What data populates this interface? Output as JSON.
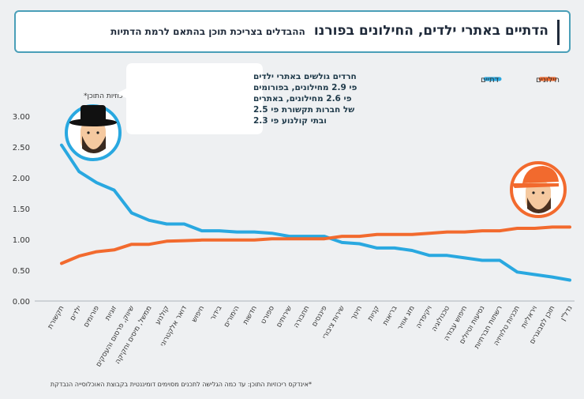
{
  "header": {
    "title": "הדתיים באתרי ילדים, החילונים בפורנו",
    "subtitle": "ההבדלים בצריכת תוכן בהתאם לרמת הדתיות"
  },
  "footnote": "*אינדקס ריכוזיות התוכן: עד כמה הגלישה לתכנים מסוימים דומיננטית בקבוצת האוכלוסייה הנבדקת",
  "callout": {
    "lines": [
      "חרדים גולשים באתרי ילדים",
      "פי 2.9 מחילונים, בפורומים",
      "פי 2.6 מחילונים, באתרים",
      "של חברות תקשורת פי 2.5",
      "ובתי קולנוע פי 2.3"
    ]
  },
  "icons": {
    "religious": "haredi-man-icon",
    "secular": "man-with-orange-cap-icon"
  },
  "colors": {
    "religious": "#29a8e0",
    "secular": "#f26a2e",
    "axis_text": "#333333",
    "grid": "#d0d4d8",
    "callout_text": "#1f3a4a"
  },
  "chart_data": {
    "type": "line",
    "ylabel": "אינדקס ריכוזיות התוכן*",
    "ylim": [
      0,
      3
    ],
    "yticks": [
      "0.00",
      "0.50",
      "1.00",
      "1.50",
      "2.00",
      "2.50",
      "3.00"
    ],
    "grid": false,
    "legend_position": "top-right",
    "categories": [
      "תקשורת",
      "ילדים",
      "פורומים",
      "זוגיות",
      "שיווק, פרסום והעסקים",
      "ממשל, מיסים וחקיקה",
      "קולנוע",
      "דואר אלקטרוני",
      "חיפוש",
      "בידור",
      "הימורים",
      "חדשות",
      "ספורט",
      "שירותים",
      "תחבורה",
      "פיננסים",
      "שירות ציבורי",
      "חינוך",
      "קניות",
      "בריאות",
      "מזג אוויר",
      "ויקיפדיה",
      "טכנולוגיה",
      "חיפוש עבודה",
      "נסיעות וטיולים",
      "רשתות חברתיות",
      "תכניות טלוויזיה",
      "ויראליות",
      "תוכן למבוגרים",
      "נדל\"ן"
    ],
    "series": [
      {
        "name": "דתיים",
        "color": "#29a8e0",
        "values": [
          2.53,
          2.1,
          1.92,
          1.8,
          1.43,
          1.31,
          1.25,
          1.25,
          1.14,
          1.14,
          1.12,
          1.12,
          1.1,
          1.05,
          1.05,
          1.05,
          0.95,
          0.93,
          0.86,
          0.86,
          0.82,
          0.74,
          0.74,
          0.7,
          0.66,
          0.66,
          0.47,
          0.43,
          0.39,
          0.34
        ]
      },
      {
        "name": "חילונים",
        "color": "#f26a2e",
        "values": [
          0.61,
          0.73,
          0.8,
          0.83,
          0.92,
          0.92,
          0.97,
          0.98,
          0.99,
          0.99,
          0.99,
          0.99,
          1.01,
          1.01,
          1.01,
          1.01,
          1.05,
          1.05,
          1.08,
          1.08,
          1.08,
          1.1,
          1.12,
          1.12,
          1.14,
          1.14,
          1.18,
          1.18,
          1.2,
          1.2
        ]
      }
    ]
  }
}
